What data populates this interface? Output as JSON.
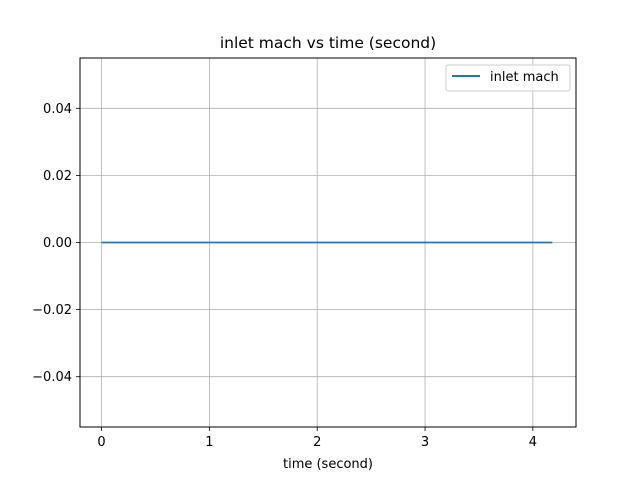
{
  "chart_data": {
    "type": "line",
    "title": "inlet mach vs time (second)",
    "xlabel": "time (second)",
    "ylabel": "",
    "xlim": [
      -0.2,
      4.4
    ],
    "ylim": [
      -0.055,
      0.055
    ],
    "x_ticks": [
      0,
      1,
      2,
      3,
      4
    ],
    "x_tick_labels": [
      "0",
      "1",
      "2",
      "3",
      "4"
    ],
    "y_ticks": [
      -0.04,
      -0.02,
      0.0,
      0.02,
      0.04
    ],
    "y_tick_labels": [
      "−0.04",
      "−0.02",
      "0.00",
      "0.02",
      "0.04"
    ],
    "grid": true,
    "legend_position": "top-right",
    "series": [
      {
        "name": "inlet mach",
        "color": "#1f77b4",
        "x": [
          0,
          4.18
        ],
        "y": [
          0,
          0
        ]
      }
    ]
  }
}
